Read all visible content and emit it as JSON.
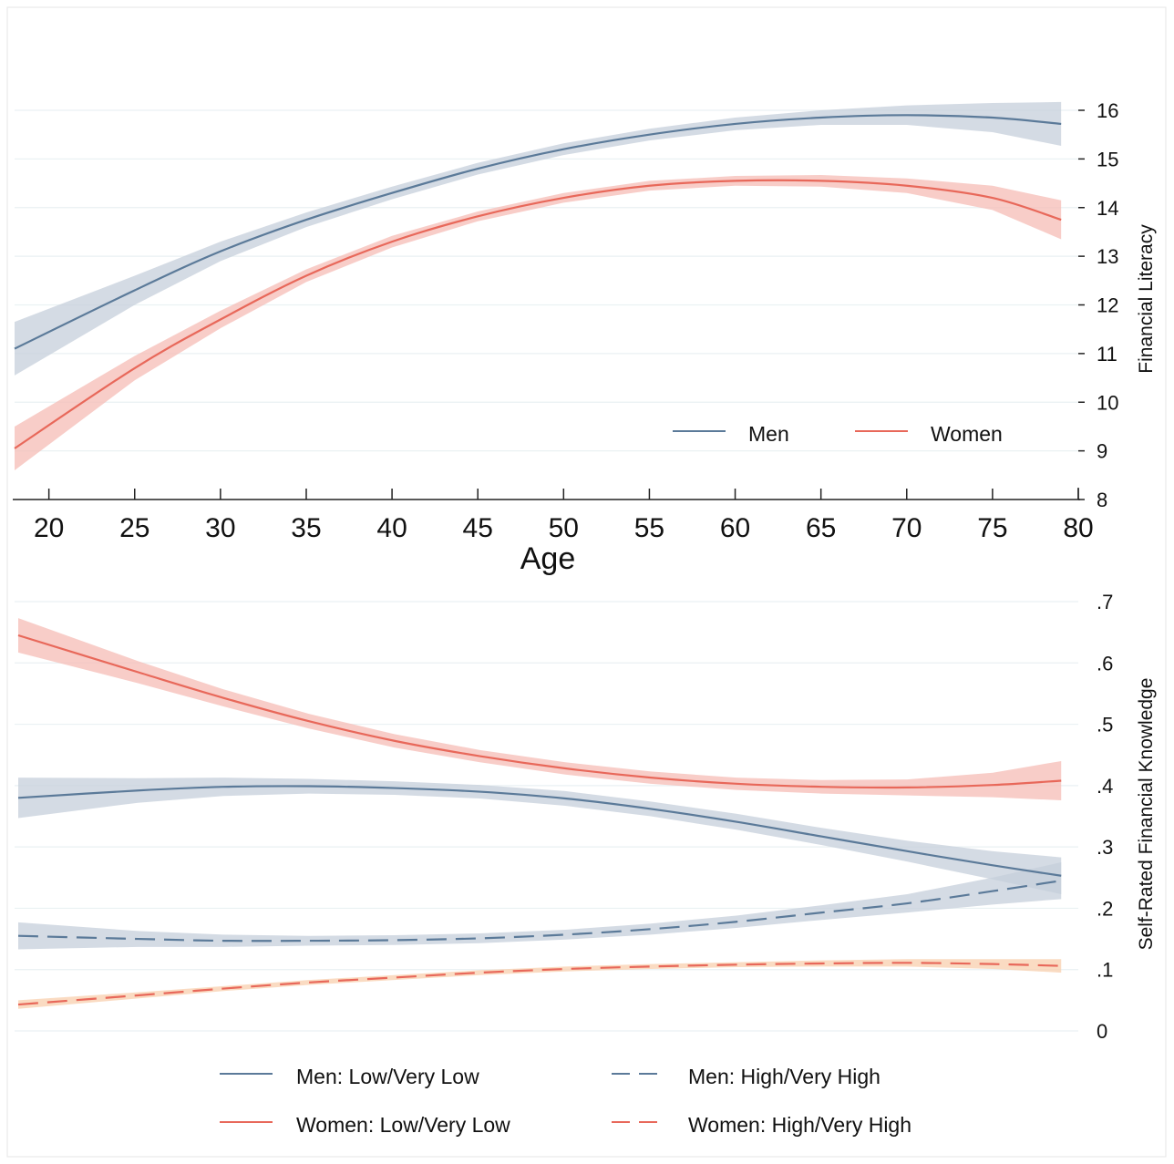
{
  "chart_data": [
    {
      "type": "line",
      "xlabel": "Age",
      "ylabel": "Financial Literacy",
      "xlim": [
        18,
        80
      ],
      "ylim": [
        8,
        16
      ],
      "xticks": [
        "20",
        "25",
        "30",
        "35",
        "40",
        "45",
        "50",
        "55",
        "60",
        "65",
        "70",
        "75",
        "80"
      ],
      "yticks": [
        "8",
        "9",
        "10",
        "11",
        "12",
        "13",
        "14",
        "15",
        "16"
      ],
      "grid": true,
      "legend_position": "bottom-right",
      "x": [
        18,
        25,
        30,
        35,
        40,
        45,
        50,
        55,
        60,
        65,
        70,
        75,
        79
      ],
      "series": [
        {
          "name": "Men",
          "color": "#5b7a99",
          "band_color": "#c5cfdb",
          "dash": false,
          "values": [
            11.1,
            12.3,
            13.1,
            13.75,
            14.3,
            14.8,
            15.2,
            15.5,
            15.72,
            15.85,
            15.9,
            15.85,
            15.72
          ],
          "ci": [
            0.55,
            0.3,
            0.2,
            0.15,
            0.13,
            0.12,
            0.12,
            0.12,
            0.13,
            0.15,
            0.2,
            0.3,
            0.45
          ]
        },
        {
          "name": "Women",
          "color": "#e8685a",
          "band_color": "#f6bcb5",
          "dash": false,
          "values": [
            9.05,
            10.7,
            11.7,
            12.6,
            13.3,
            13.82,
            14.2,
            14.45,
            14.55,
            14.55,
            14.45,
            14.2,
            13.75
          ],
          "ci": [
            0.45,
            0.25,
            0.18,
            0.13,
            0.12,
            0.1,
            0.1,
            0.1,
            0.1,
            0.12,
            0.15,
            0.25,
            0.4
          ]
        }
      ]
    },
    {
      "type": "line",
      "xlabel": "",
      "ylabel": "Self-Rated Financial Knowledge",
      "xlim": [
        18,
        80
      ],
      "ylim": [
        0,
        0.7
      ],
      "yticks": [
        "0",
        ".1",
        ".2",
        ".3",
        ".4",
        ".5",
        ".6",
        ".7"
      ],
      "grid": true,
      "legend_position": "bottom",
      "x": [
        18,
        25,
        30,
        35,
        40,
        45,
        50,
        55,
        60,
        65,
        70,
        75,
        79
      ],
      "series": [
        {
          "name": "Men: Low/Very Low",
          "color": "#5b7a99",
          "band_color": "#c5cfdb",
          "dash": false,
          "values": [
            0.38,
            0.392,
            0.398,
            0.399,
            0.396,
            0.39,
            0.379,
            0.362,
            0.341,
            0.317,
            0.293,
            0.27,
            0.253
          ],
          "ci": [
            0.033,
            0.02,
            0.015,
            0.012,
            0.011,
            0.011,
            0.012,
            0.012,
            0.013,
            0.014,
            0.017,
            0.023,
            0.03
          ]
        },
        {
          "name": "Men: High/Very High",
          "color": "#5b7a99",
          "band_color": "#c5cfdb",
          "dash": true,
          "values": [
            0.155,
            0.15,
            0.147,
            0.147,
            0.148,
            0.151,
            0.157,
            0.166,
            0.178,
            0.193,
            0.208,
            0.228,
            0.245
          ],
          "ci": [
            0.022,
            0.013,
            0.01,
            0.008,
            0.008,
            0.008,
            0.008,
            0.009,
            0.01,
            0.012,
            0.015,
            0.022,
            0.03
          ]
        },
        {
          "name": "Women: Low/Very Low",
          "color": "#e8685a",
          "band_color": "#f6bcb5",
          "dash": false,
          "values": [
            0.645,
            0.585,
            0.543,
            0.505,
            0.473,
            0.448,
            0.428,
            0.413,
            0.403,
            0.398,
            0.397,
            0.401,
            0.408
          ],
          "ci": [
            0.028,
            0.018,
            0.014,
            0.012,
            0.011,
            0.01,
            0.01,
            0.01,
            0.01,
            0.011,
            0.013,
            0.02,
            0.032
          ]
        },
        {
          "name": "Women: High/Very High",
          "color": "#e8685a",
          "band_color": "#f8cfae",
          "dash": true,
          "values": [
            0.043,
            0.058,
            0.069,
            0.079,
            0.087,
            0.095,
            0.101,
            0.105,
            0.108,
            0.11,
            0.111,
            0.109,
            0.106
          ],
          "ci": [
            0.007,
            0.005,
            0.004,
            0.004,
            0.004,
            0.004,
            0.004,
            0.004,
            0.004,
            0.005,
            0.006,
            0.008,
            0.011
          ]
        }
      ]
    }
  ]
}
